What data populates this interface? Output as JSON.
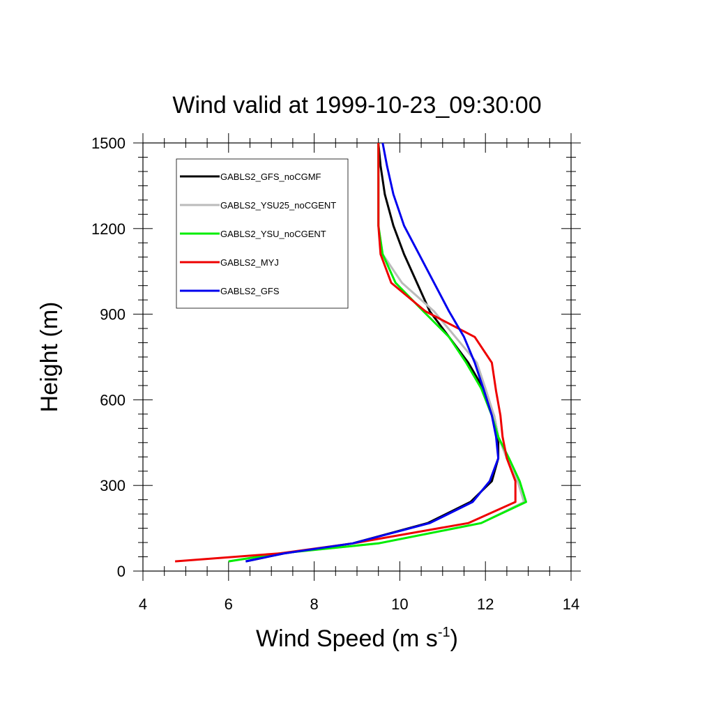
{
  "chart_data": {
    "type": "line",
    "title": "Wind valid at 1999-10-23_09:30:00",
    "xlabel": "Wind Speed (m s",
    "xlabel_sup": "-1",
    "xlabel_end": ")",
    "ylabel": "Height (m)",
    "xlim": [
      4,
      14
    ],
    "ylim": [
      0,
      1500
    ],
    "xticks": [
      4,
      6,
      8,
      10,
      12,
      14
    ],
    "yticks": [
      0,
      300,
      600,
      900,
      1200,
      1500
    ],
    "legend_position": "top-left",
    "grid": false,
    "series": [
      {
        "name": "GABLS2_GFS_noCGMF",
        "color": "#000000",
        "points": [
          [
            6.4,
            34
          ],
          [
            7.3,
            62
          ],
          [
            8.9,
            97
          ],
          [
            10.65,
            168
          ],
          [
            11.65,
            242
          ],
          [
            12.15,
            315
          ],
          [
            12.3,
            395
          ],
          [
            12.3,
            470
          ],
          [
            12.2,
            545
          ],
          [
            11.95,
            640
          ],
          [
            11.6,
            730
          ],
          [
            11.15,
            820
          ],
          [
            10.7,
            910
          ],
          [
            10.4,
            1010
          ],
          [
            10.1,
            1110
          ],
          [
            9.85,
            1210
          ],
          [
            9.65,
            1320
          ],
          [
            9.55,
            1420
          ],
          [
            9.5,
            1500
          ]
        ]
      },
      {
        "name": "GABLS2_YSU25_noCGENT",
        "color": "#bbbbbb",
        "points": [
          [
            6.0,
            34
          ],
          [
            7.2,
            62
          ],
          [
            9.5,
            97
          ],
          [
            11.9,
            168
          ],
          [
            12.9,
            242
          ],
          [
            12.75,
            315
          ],
          [
            12.5,
            395
          ],
          [
            12.3,
            470
          ],
          [
            12.2,
            545
          ],
          [
            12.0,
            640
          ],
          [
            11.8,
            730
          ],
          [
            11.3,
            820
          ],
          [
            10.8,
            910
          ],
          [
            10.05,
            1010
          ],
          [
            9.6,
            1110
          ],
          [
            9.5,
            1210
          ],
          [
            9.5,
            1320
          ],
          [
            9.5,
            1420
          ],
          [
            9.5,
            1500
          ]
        ]
      },
      {
        "name": "GABLS2_YSU_noCGENT",
        "color": "#00ee00",
        "points": [
          [
            6.0,
            34
          ],
          [
            7.2,
            62
          ],
          [
            9.5,
            97
          ],
          [
            11.9,
            168
          ],
          [
            12.95,
            242
          ],
          [
            12.8,
            315
          ],
          [
            12.55,
            395
          ],
          [
            12.3,
            470
          ],
          [
            12.15,
            545
          ],
          [
            11.9,
            640
          ],
          [
            11.55,
            730
          ],
          [
            11.15,
            820
          ],
          [
            10.55,
            910
          ],
          [
            9.9,
            1010
          ],
          [
            9.6,
            1110
          ],
          [
            9.5,
            1210
          ],
          [
            9.5,
            1320
          ],
          [
            9.5,
            1420
          ],
          [
            9.5,
            1500
          ]
        ]
      },
      {
        "name": "GABLS2_MYJ",
        "color": "#ee0000",
        "points": [
          [
            4.75,
            34
          ],
          [
            7.2,
            62
          ],
          [
            8.9,
            97
          ],
          [
            11.6,
            168
          ],
          [
            12.7,
            242
          ],
          [
            12.7,
            315
          ],
          [
            12.5,
            395
          ],
          [
            12.4,
            470
          ],
          [
            12.35,
            545
          ],
          [
            12.25,
            630
          ],
          [
            12.15,
            730
          ],
          [
            11.75,
            820
          ],
          [
            10.6,
            910
          ],
          [
            9.8,
            1010
          ],
          [
            9.55,
            1110
          ],
          [
            9.5,
            1210
          ],
          [
            9.5,
            1320
          ],
          [
            9.5,
            1420
          ],
          [
            9.5,
            1500
          ]
        ]
      },
      {
        "name": "GABLS2_GFS",
        "color": "#0000ee",
        "points": [
          [
            6.4,
            34
          ],
          [
            7.3,
            62
          ],
          [
            8.9,
            97
          ],
          [
            10.7,
            168
          ],
          [
            11.7,
            242
          ],
          [
            12.1,
            315
          ],
          [
            12.3,
            395
          ],
          [
            12.25,
            470
          ],
          [
            12.15,
            545
          ],
          [
            11.95,
            640
          ],
          [
            11.75,
            730
          ],
          [
            11.5,
            820
          ],
          [
            11.15,
            910
          ],
          [
            10.8,
            1010
          ],
          [
            10.45,
            1110
          ],
          [
            10.1,
            1210
          ],
          [
            9.85,
            1320
          ],
          [
            9.7,
            1420
          ],
          [
            9.6,
            1500
          ]
        ]
      }
    ]
  }
}
